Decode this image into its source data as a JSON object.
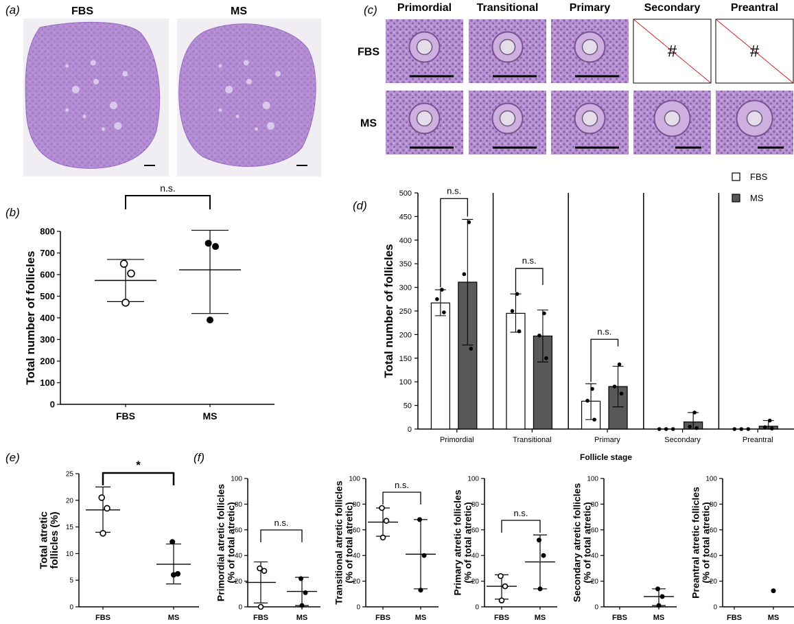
{
  "panels": {
    "a": {
      "letter": "(a)",
      "groups": [
        "FBS",
        "MS"
      ]
    },
    "c": {
      "letter": "(c)",
      "stages": [
        "Primordial",
        "Transitional",
        "Primary",
        "Secondary",
        "Preantral"
      ],
      "rows": [
        "FBS",
        "MS"
      ],
      "missing_symbol": "#"
    }
  },
  "colors": {
    "tissue": "#b48ad6",
    "tissue_dark": "#8f62bf",
    "background_light": "#f0edf3",
    "fbs_bar": "#ffffff",
    "ms_bar": "#595959",
    "cross_line": "#d62020"
  },
  "chart_data": [
    {
      "id": "b",
      "letter": "(b)",
      "type": "scatter",
      "categories": [
        "FBS",
        "MS"
      ],
      "ylabel": "Total number of follicles",
      "ylim": [
        0,
        800
      ],
      "yticks": [
        0,
        100,
        200,
        300,
        400,
        500,
        600,
        700,
        800
      ],
      "series": [
        {
          "points": [
            650,
            605,
            470
          ],
          "mean": 573,
          "sd": [
            475,
            670
          ],
          "marker": "open"
        },
        {
          "points": [
            745,
            730,
            390
          ],
          "mean": 622,
          "sd": [
            420,
            805
          ],
          "marker": "filled"
        }
      ],
      "annotations": [
        {
          "between": [
            0,
            1
          ],
          "text": "n.s."
        }
      ]
    },
    {
      "id": "d",
      "letter": "(d)",
      "type": "bar",
      "categories": [
        "Primordial",
        "Transitional",
        "Primary",
        "Secondary",
        "Preantral"
      ],
      "xlabel": "Follicle stage",
      "ylabel": "Total number of follicles",
      "ylim": [
        0,
        500
      ],
      "yticks": [
        0,
        50,
        100,
        150,
        200,
        250,
        300,
        350,
        400,
        450,
        500
      ],
      "legend_position": "top-right",
      "series": [
        {
          "name": "FBS",
          "values": [
            267,
            245,
            59,
            0,
            0
          ],
          "sd_low": [
            240,
            205,
            20,
            0,
            0
          ],
          "sd_high": [
            295,
            286,
            96,
            0,
            0
          ],
          "points": [
            [
              295,
              275,
              247
            ],
            [
              286,
              250,
              207
            ],
            [
              85,
              60,
              20
            ],
            [
              0,
              0,
              0
            ],
            [
              0,
              0,
              0
            ]
          ]
        },
        {
          "name": "MS",
          "values": [
            311,
            197,
            90,
            15,
            6
          ],
          "sd_low": [
            178,
            142,
            47,
            0,
            0
          ],
          "sd_high": [
            444,
            252,
            133,
            35,
            18
          ],
          "points": [
            [
              438,
              328,
              170
            ],
            [
              245,
              198,
              150
            ],
            [
              137,
              90,
              75
            ],
            [
              35,
              5,
              2
            ],
            [
              18,
              4,
              1
            ]
          ]
        }
      ],
      "annotations": [
        {
          "category": 0,
          "text": "n.s."
        },
        {
          "category": 1,
          "text": "n.s."
        },
        {
          "category": 2,
          "text": "n.s."
        }
      ]
    },
    {
      "id": "e",
      "letter": "(e)",
      "type": "scatter",
      "categories": [
        "FBS",
        "MS"
      ],
      "ylabel": "Total atretic follicles (%)",
      "ylim": [
        0,
        25
      ],
      "yticks": [
        0,
        5,
        10,
        15,
        20,
        25
      ],
      "series": [
        {
          "points": [
            20.5,
            18.5,
            13.8
          ],
          "mean": 18.2,
          "sd": [
            14,
            22.5
          ],
          "marker": "open"
        },
        {
          "points": [
            12.2,
            6.2,
            6.0
          ],
          "mean": 8.0,
          "sd": [
            4.3,
            11.8
          ],
          "marker": "filled"
        }
      ],
      "annotations": [
        {
          "between": [
            0,
            1
          ],
          "text": "*"
        }
      ]
    },
    {
      "id": "f1",
      "letter": "(f)",
      "type": "scatter",
      "categories": [
        "FBS",
        "MS"
      ],
      "ylabel": "Primordial atretic follicles (% of total atretic)",
      "ylim": [
        0,
        100
      ],
      "yticks": [
        0,
        20,
        40,
        60,
        80,
        100
      ],
      "series": [
        {
          "points": [
            30,
            28,
            0
          ],
          "mean": 19,
          "sd": [
            3,
            35
          ],
          "marker": "open"
        },
        {
          "points": [
            22,
            11,
            1
          ],
          "mean": 12,
          "sd": [
            1,
            23
          ],
          "marker": "filled"
        }
      ],
      "annotations": [
        {
          "between": [
            0,
            1
          ],
          "text": "n.s."
        }
      ]
    },
    {
      "id": "f2",
      "letter": "",
      "type": "scatter",
      "categories": [
        "FBS",
        "MS"
      ],
      "ylabel": "Transitional atretic follicles (% of total atretic)",
      "ylim": [
        0,
        100
      ],
      "yticks": [
        0,
        20,
        40,
        60,
        80,
        100
      ],
      "series": [
        {
          "points": [
            77,
            67,
            54
          ],
          "mean": 66,
          "sd": [
            55,
            77
          ],
          "marker": "open"
        },
        {
          "points": [
            68,
            40,
            13
          ],
          "mean": 41,
          "sd": [
            14,
            68
          ],
          "marker": "filled"
        }
      ],
      "annotations": [
        {
          "between": [
            0,
            1
          ],
          "text": "n.s."
        }
      ]
    },
    {
      "id": "f3",
      "letter": "",
      "type": "scatter",
      "categories": [
        "FBS",
        "MS"
      ],
      "ylabel": "Primary atretic follicles (% of total atretic)",
      "ylim": [
        0,
        100
      ],
      "yticks": [
        0,
        20,
        40,
        60,
        80,
        100
      ],
      "series": [
        {
          "points": [
            24,
            16,
            5
          ],
          "mean": 16,
          "sd": [
            6,
            25
          ],
          "marker": "open"
        },
        {
          "points": [
            52,
            40,
            14
          ],
          "mean": 35,
          "sd": [
            14,
            56
          ],
          "marker": "filled"
        }
      ],
      "annotations": [
        {
          "between": [
            0,
            1
          ],
          "text": "n.s."
        }
      ]
    },
    {
      "id": "f4",
      "letter": "",
      "type": "scatter",
      "categories": [
        "FBS",
        "MS"
      ],
      "ylabel": "Secondary atretic follicles (% of total atretic)",
      "ylim": [
        0,
        100
      ],
      "yticks": [
        0,
        20,
        40,
        60,
        80,
        100
      ],
      "series": [
        {
          "points": [],
          "mean": null,
          "sd": null,
          "marker": "open"
        },
        {
          "points": [
            14,
            8,
            1
          ],
          "mean": 8,
          "sd": [
            1,
            14
          ],
          "marker": "filled"
        }
      ],
      "annotations": []
    },
    {
      "id": "f5",
      "letter": "",
      "type": "scatter",
      "categories": [
        "FBS",
        "MS"
      ],
      "ylabel": "Preantral atretic follicles (% of total atretic)",
      "ylim": [
        0,
        100
      ],
      "yticks": [
        0,
        20,
        40,
        60,
        80,
        100
      ],
      "series": [
        {
          "points": [],
          "mean": null,
          "sd": null,
          "marker": "open"
        },
        {
          "points": [
            12.5
          ],
          "mean": null,
          "sd": null,
          "marker": "filled"
        }
      ],
      "annotations": []
    }
  ]
}
